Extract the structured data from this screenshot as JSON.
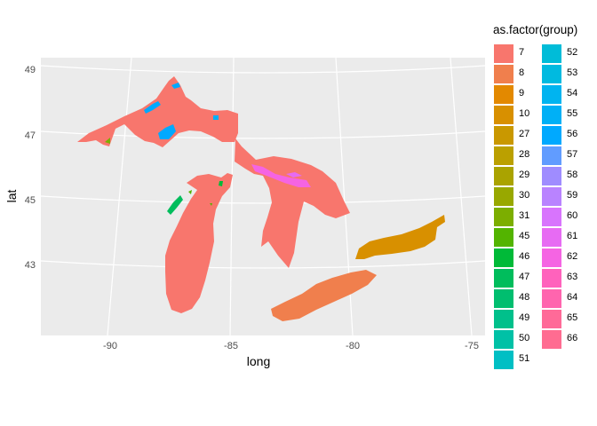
{
  "chart_data": {
    "type": "map",
    "xlabel": "long",
    "ylabel": "lat",
    "x_ticks": [
      "-90",
      "-85",
      "-80",
      "-75"
    ],
    "y_ticks": [
      "49",
      "47",
      "45",
      "43"
    ],
    "xlim": [
      -93,
      -75
    ],
    "ylim": [
      41,
      49.5
    ],
    "legend_title": "as.factor(group)",
    "legend_placement": "right",
    "groups": [
      "7",
      "8",
      "9",
      "10",
      "27",
      "28",
      "29",
      "30",
      "31",
      "45",
      "46",
      "47",
      "48",
      "49",
      "50",
      "51",
      "52",
      "53",
      "54",
      "55",
      "56",
      "57",
      "58",
      "59",
      "60",
      "61",
      "62",
      "63",
      "64",
      "65",
      "66"
    ],
    "group_colors": [
      "#F8766D",
      "#F07F4D",
      "#E38900",
      "#D89000",
      "#C99800",
      "#BBA000",
      "#AAA300",
      "#98A800",
      "#7CAE00",
      "#53B400",
      "#00BA38",
      "#00BD5C",
      "#00BE6F",
      "#00C08B",
      "#00C1A6",
      "#00BFC4",
      "#00BCD8",
      "#00BAE0",
      "#00B4F0",
      "#00B0F6",
      "#00A9FF",
      "#619CFF",
      "#9F8CFF",
      "#B983FF",
      "#D874FD",
      "#E76BF3",
      "#F564E3",
      "#FF62BC",
      "#FF65AE",
      "#FF6A98",
      "#FF6C91"
    ]
  }
}
